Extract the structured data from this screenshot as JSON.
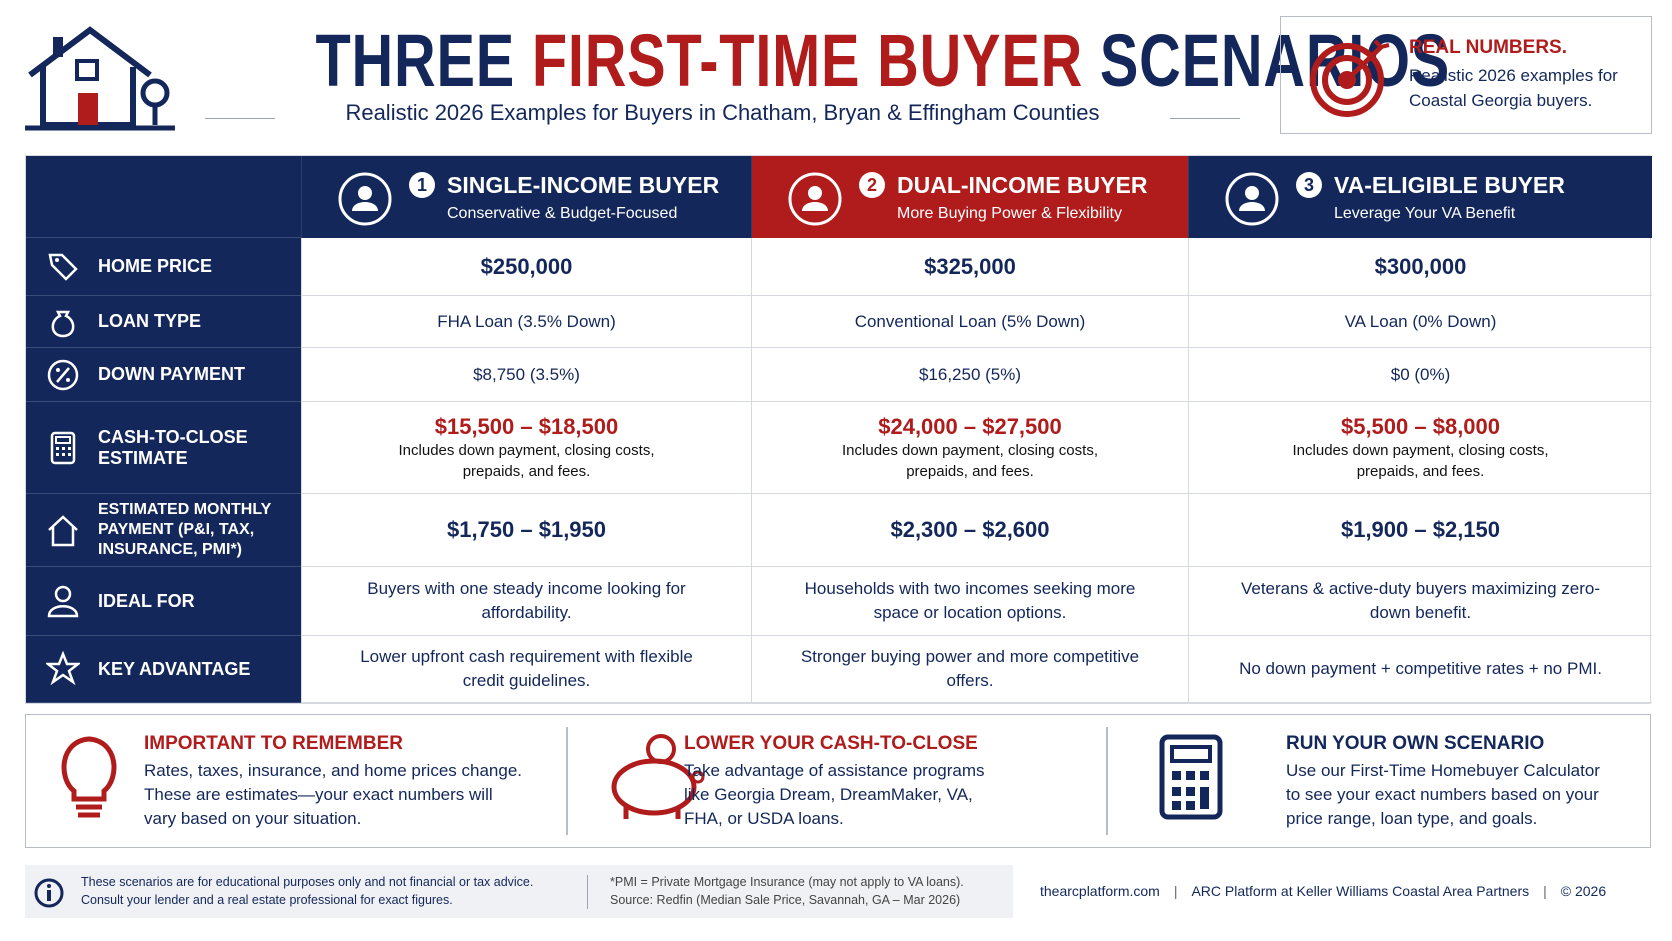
{
  "header": {
    "title_parts": [
      "THREE",
      "FIRST-TIME BUYER",
      "SCENARIOS"
    ],
    "subtitle": "Realistic 2026 Examples for Buyers in Chatham, Bryan & Effingham Counties"
  },
  "callout": {
    "heading": "REAL NUMBERS.",
    "text": "Realistic 2026 examples for Coastal Georgia buyers."
  },
  "table": {
    "columns": [
      {
        "number": "1",
        "title": "SINGLE-INCOME BUYER",
        "subtitle": "Conservative & Budget-Focused"
      },
      {
        "number": "2",
        "title": "DUAL-INCOME BUYER",
        "subtitle": "More Buying Power & Flexibility"
      },
      {
        "number": "3",
        "title": "VA-ELIGIBLE BUYER",
        "subtitle": "Leverage Your VA Benefit"
      }
    ],
    "rows": [
      {
        "label": "HOME PRICE",
        "cells": [
          "$250,000",
          "$325,000",
          "$300,000"
        ]
      },
      {
        "label": "LOAN TYPE",
        "cells": [
          "FHA Loan (3.5% Down)",
          "Conventional Loan (5% Down)",
          "VA Loan (0% Down)"
        ]
      },
      {
        "label": "DOWN PAYMENT",
        "cells": [
          "$8,750 (3.5%)",
          "$16,250 (5%)",
          "$0 (0%)"
        ]
      },
      {
        "label": "CASH-TO-CLOSE ESTIMATE",
        "cells": [
          {
            "amount": "$15,500 – $18,500",
            "note": "Includes down payment, closing costs, prepaids, and fees."
          },
          {
            "amount": "$24,000 – $27,500",
            "note": "Includes down payment, closing costs, prepaids, and fees."
          },
          {
            "amount": "$5,500 – $8,000",
            "note": "Includes down payment, closing costs, prepaids, and fees."
          }
        ]
      },
      {
        "label": "ESTIMATED MONTHLY PAYMENT (P&I, TAX, INSURANCE, PMI*)",
        "cells": [
          "$1,750 – $1,950",
          "$2,300 – $2,600",
          "$1,900 – $2,150"
        ]
      },
      {
        "label": "IDEAL FOR",
        "cells": [
          "Buyers with one steady income looking for affordability.",
          "Households with two incomes seeking more space or location options.",
          "Veterans & active-duty buyers maximizing zero-down benefit."
        ]
      },
      {
        "label": "KEY ADVANTAGE",
        "cells": [
          "Lower upfront cash requirement with flexible credit guidelines.",
          "Stronger buying power and more competitive offers.",
          "No down payment + competitive rates + no PMI."
        ]
      }
    ]
  },
  "tips": [
    {
      "title": "IMPORTANT TO REMEMBER",
      "text": "Rates, taxes, insurance, and home prices change. These are estimates—your exact numbers will vary based on your situation."
    },
    {
      "title": "LOWER YOUR CASH-TO-CLOSE",
      "text": "Take advantage of assistance programs like Georgia Dream, DreamMaker, VA, FHA, or USDA loans."
    },
    {
      "title": "RUN YOUR OWN SCENARIO",
      "text": "Use our First-Time Homebuyer Calculator to see your exact numbers based on your price range, loan type, and goals."
    }
  ],
  "footer": {
    "disclaimer": "These scenarios are for educational purposes only and not financial or tax advice. Consult your lender and a real estate professional for exact figures.",
    "note": "*PMI = Private Mortgage Insurance (may not apply to VA loans).",
    "source": "Source: Redfin (Median Sale Price, Savannah, GA – Mar 2026)",
    "site": "thearcplatform.com",
    "company": "ARC Platform at Keller Williams Coastal Area Partners",
    "copyright": "© 2026"
  }
}
